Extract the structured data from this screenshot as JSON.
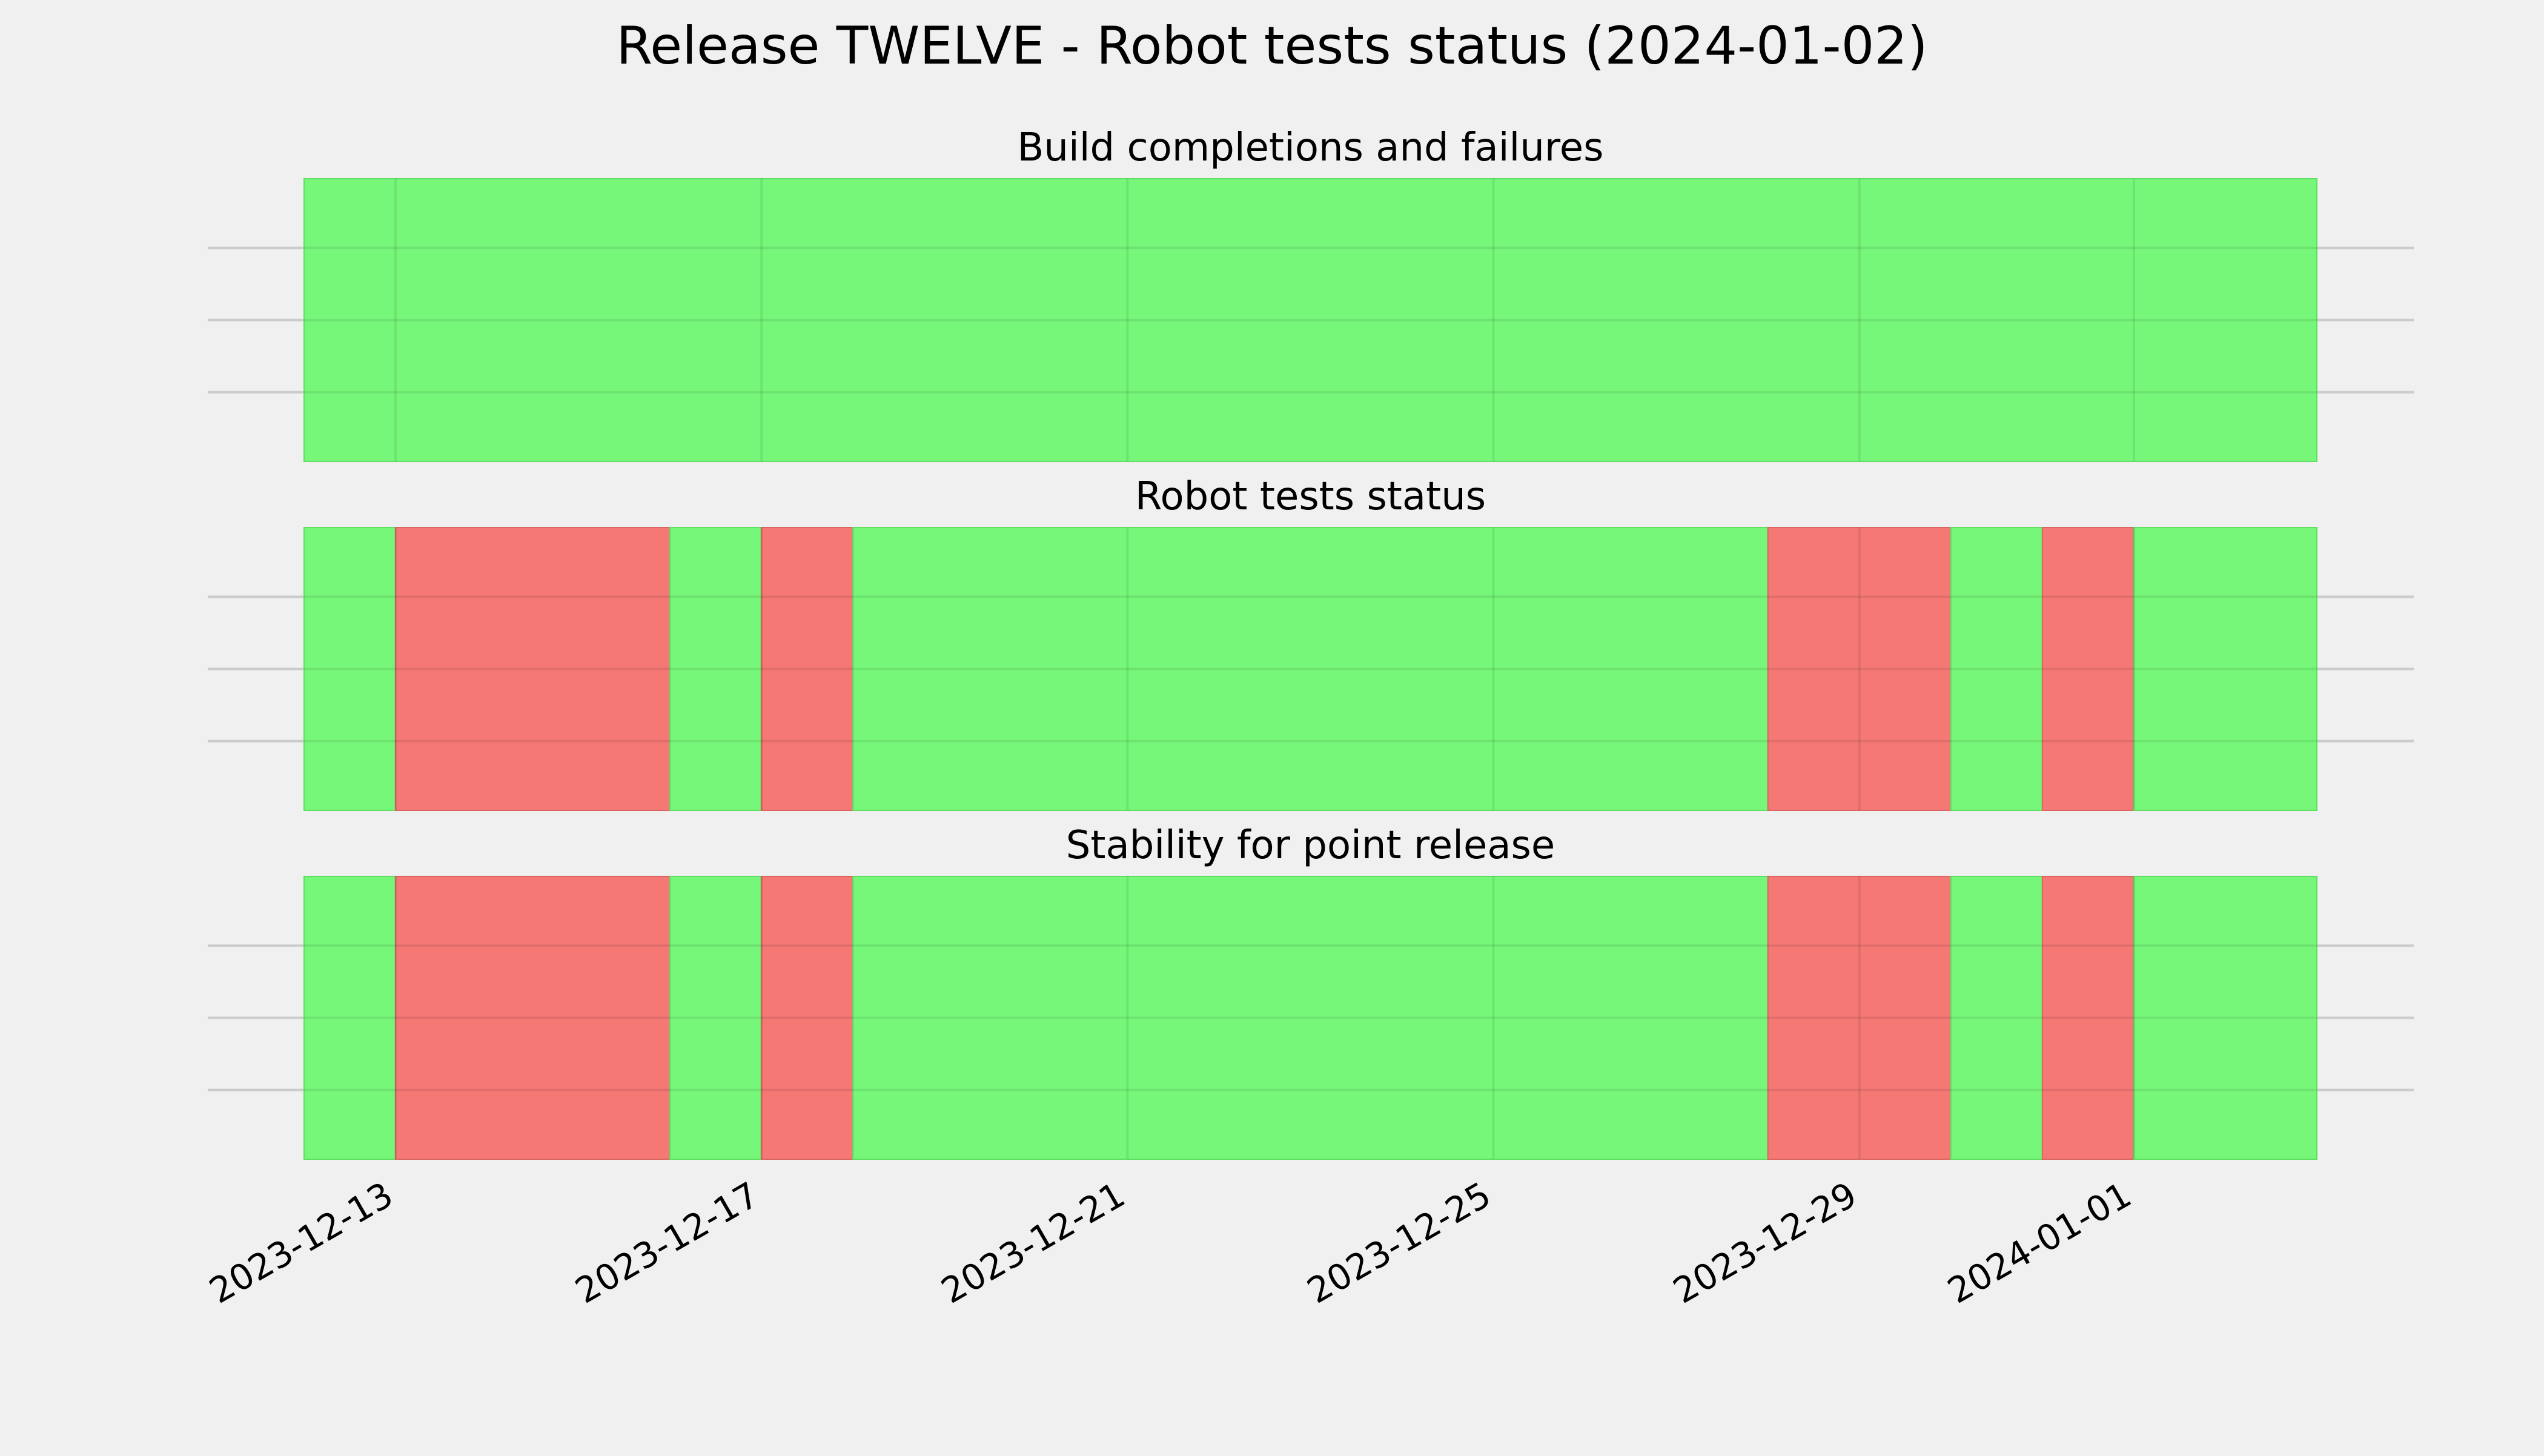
{
  "title": "Release TWELVE - Robot tests status (2024-01-02)",
  "colors": {
    "background": "#f0f0f0",
    "pass": "#77f77a",
    "fail": "#f57875",
    "grid": "#cbcbcb"
  },
  "chart_data": [
    {
      "type": "timeline",
      "title": "Build completions and failures",
      "xlim": [
        "2023-12-12",
        "2024-01-03"
      ],
      "grid": true,
      "xticks": [
        "2023-12-13",
        "2023-12-17",
        "2023-12-21",
        "2023-12-25",
        "2023-12-29",
        "2024-01-01"
      ],
      "segments": [
        {
          "start": "2023-12-12",
          "end": "2024-01-03",
          "status": "pass"
        }
      ]
    },
    {
      "type": "timeline",
      "title": "Robot tests status",
      "xlim": [
        "2023-12-12",
        "2024-01-03"
      ],
      "grid": true,
      "xticks": [
        "2023-12-13",
        "2023-12-17",
        "2023-12-21",
        "2023-12-25",
        "2023-12-29",
        "2024-01-01"
      ],
      "segments": [
        {
          "start": "2023-12-12",
          "end": "2023-12-13",
          "status": "pass"
        },
        {
          "start": "2023-12-13",
          "end": "2023-12-16",
          "status": "fail"
        },
        {
          "start": "2023-12-16",
          "end": "2023-12-17",
          "status": "pass"
        },
        {
          "start": "2023-12-17",
          "end": "2023-12-18",
          "status": "fail"
        },
        {
          "start": "2023-12-18",
          "end": "2023-12-28",
          "status": "pass"
        },
        {
          "start": "2023-12-28",
          "end": "2023-12-30",
          "status": "fail"
        },
        {
          "start": "2023-12-30",
          "end": "2023-12-31",
          "status": "pass"
        },
        {
          "start": "2023-12-31",
          "end": "2024-01-01",
          "status": "fail"
        },
        {
          "start": "2024-01-01",
          "end": "2024-01-03",
          "status": "pass"
        }
      ]
    },
    {
      "type": "timeline",
      "title": "Stability for point release",
      "xlim": [
        "2023-12-12",
        "2024-01-03"
      ],
      "grid": true,
      "xticks": [
        "2023-12-13",
        "2023-12-17",
        "2023-12-21",
        "2023-12-25",
        "2023-12-29",
        "2024-01-01"
      ],
      "segments": [
        {
          "start": "2023-12-12",
          "end": "2023-12-13",
          "status": "pass"
        },
        {
          "start": "2023-12-13",
          "end": "2023-12-16",
          "status": "fail"
        },
        {
          "start": "2023-12-16",
          "end": "2023-12-17",
          "status": "pass"
        },
        {
          "start": "2023-12-17",
          "end": "2023-12-18",
          "status": "fail"
        },
        {
          "start": "2023-12-18",
          "end": "2023-12-28",
          "status": "pass"
        },
        {
          "start": "2023-12-28",
          "end": "2023-12-30",
          "status": "fail"
        },
        {
          "start": "2023-12-30",
          "end": "2023-12-31",
          "status": "pass"
        },
        {
          "start": "2023-12-31",
          "end": "2024-01-01",
          "status": "fail"
        },
        {
          "start": "2024-01-01",
          "end": "2024-01-03",
          "status": "pass"
        }
      ]
    }
  ]
}
